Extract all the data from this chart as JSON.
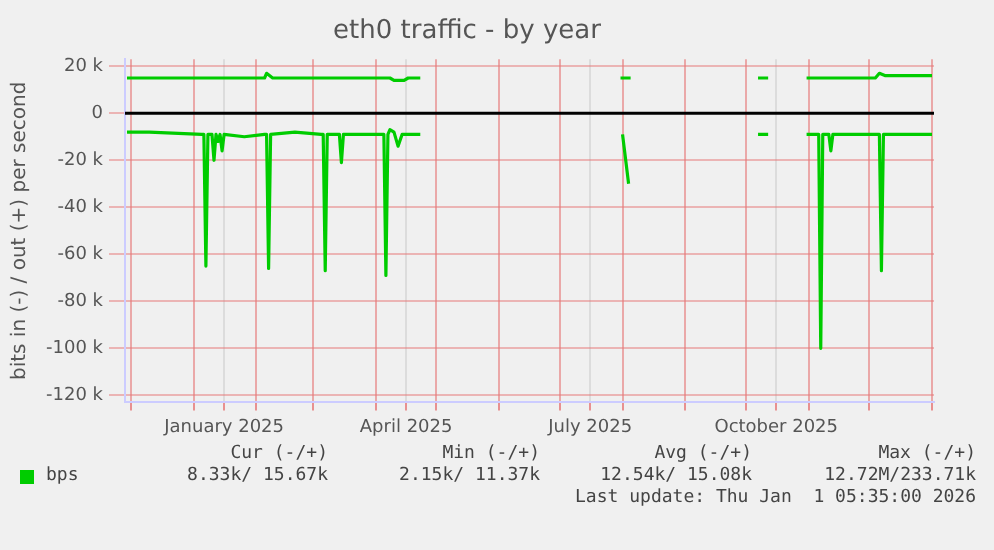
{
  "chart_data": {
    "type": "line",
    "title": "eth0 traffic - by year",
    "ylabel": "bits in (-) / out (+) per second",
    "xlim": [
      "2024-11-28",
      "2026-01-02"
    ],
    "xticks": [
      {
        "value": "2024-12-01",
        "label": null
      },
      {
        "value": "2025-01-01",
        "label": null
      },
      {
        "value": "2025-01-16",
        "label": "January 2025"
      },
      {
        "value": "2025-02-01",
        "label": null
      },
      {
        "value": "2025-03-01",
        "label": null
      },
      {
        "value": "2025-04-01",
        "label": null
      },
      {
        "value": "2025-04-16",
        "label": "April 2025"
      },
      {
        "value": "2025-05-01",
        "label": null
      },
      {
        "value": "2025-06-01",
        "label": null
      },
      {
        "value": "2025-07-01",
        "label": null
      },
      {
        "value": "2025-07-16",
        "label": "July 2025"
      },
      {
        "value": "2025-08-01",
        "label": null
      },
      {
        "value": "2025-09-01",
        "label": null
      },
      {
        "value": "2025-10-01",
        "label": null
      },
      {
        "value": "2025-10-16",
        "label": "October 2025"
      },
      {
        "value": "2025-11-01",
        "label": null
      },
      {
        "value": "2025-12-01",
        "label": null
      },
      {
        "value": "2026-01-01",
        "label": null
      }
    ],
    "ylim": [
      -123000,
      23000
    ],
    "yticks": [
      {
        "value": 20000,
        "label": "20 k"
      },
      0,
      {
        "value": -20000,
        "label": "-20 k"
      },
      {
        "value": -40000,
        "label": "-40 k"
      },
      {
        "value": -60000,
        "label": "-60 k"
      },
      {
        "value": -80000,
        "label": "-80 k"
      },
      {
        "value": -100000,
        "label": "-100 k"
      },
      {
        "value": -120000,
        "label": "-120 k"
      }
    ],
    "grid": true,
    "legend": "bottom",
    "marker": "none",
    "line_style": "solid",
    "ref_lines": [
      {
        "axis": "y",
        "value": 0,
        "color": "#000000"
      }
    ],
    "series": [
      {
        "name": "bps",
        "color": "#00cc00",
        "x": [
          "2024-11-29",
          "2025-01-01",
          "2025-02-05",
          "2025-02-06",
          "2025-02-09",
          "2025-03-15",
          "2025-04-08",
          "2025-04-10",
          "2025-04-15",
          "2025-04-17",
          "2025-04-23",
          null,
          "2025-07-31",
          "2025-08-05",
          null,
          "2025-10-07",
          "2025-10-12",
          null,
          "2025-10-31",
          "2025-11-10",
          "2025-12-04",
          "2025-12-06",
          "2025-12-09",
          "2026-01-01"
        ],
        "values": [
          15000,
          15000,
          15000,
          17000,
          15000,
          15000,
          15000,
          14000,
          14000,
          15000,
          15000,
          null,
          15000,
          15000,
          null,
          15000,
          15000,
          null,
          15000,
          15000,
          15000,
          17000,
          16000,
          16000
        ]
      },
      {
        "color": "#00cc00",
        "x": [
          "2024-11-29",
          "2024-12-10",
          "2025-01-05",
          "2025-01-06",
          "2025-01-07",
          "2025-01-08",
          "2025-01-10",
          "2025-01-11",
          "2025-01-12",
          "2025-01-13",
          "2025-01-14",
          "2025-01-15",
          "2025-01-16",
          "2025-01-26",
          "2025-02-05",
          "2025-02-06",
          "2025-02-07",
          "2025-02-08",
          "2025-02-20",
          "2025-03-05",
          "2025-03-06",
          "2025-03-07",
          "2025-03-08",
          "2025-03-13",
          "2025-03-14",
          "2025-03-15",
          "2025-03-16",
          "2025-04-04",
          "2025-04-05",
          "2025-04-06",
          "2025-04-07",
          "2025-04-08",
          "2025-04-10",
          "2025-04-12",
          "2025-04-14",
          "2025-04-23",
          null,
          "2025-08-01",
          "2025-08-04",
          null,
          "2025-10-07",
          "2025-10-12",
          null,
          "2025-10-31",
          "2025-11-05",
          "2025-11-06",
          "2025-11-07",
          "2025-11-08",
          "2025-11-11",
          "2025-11-12",
          "2025-11-13",
          "2025-12-05",
          "2025-12-06",
          "2025-12-07",
          "2025-12-08",
          "2026-01-01"
        ],
        "values": [
          -8000,
          -8000,
          -9000,
          -9000,
          -65000,
          -9000,
          -9000,
          -20000,
          -9000,
          -12000,
          -9000,
          -16000,
          -9000,
          -10000,
          -9000,
          -9000,
          -66000,
          -9000,
          -8000,
          -9000,
          -9000,
          -67000,
          -9000,
          -9000,
          -9000,
          -21000,
          -9000,
          -9000,
          -9000,
          -69000,
          -9000,
          -7000,
          -8000,
          -14000,
          -9000,
          -9000,
          null,
          -9000,
          -30000,
          null,
          -9000,
          -9000,
          null,
          -9000,
          -9000,
          -9000,
          -100000,
          -9000,
          -9000,
          -16000,
          -9000,
          -9000,
          -9000,
          -67000,
          -9000,
          -9000
        ]
      }
    ],
    "annotations": [
      "Cur (-/+)",
      "Min (-/+)",
      "Avg (-/+)",
      "Max (-/+)",
      "8.33k/ 15.67k",
      "2.15k/ 11.37k",
      "12.54k/ 15.08k",
      "12.72M/233.71k",
      "Last update: Thu Jan  1 05:35:00 2026"
    ]
  }
}
